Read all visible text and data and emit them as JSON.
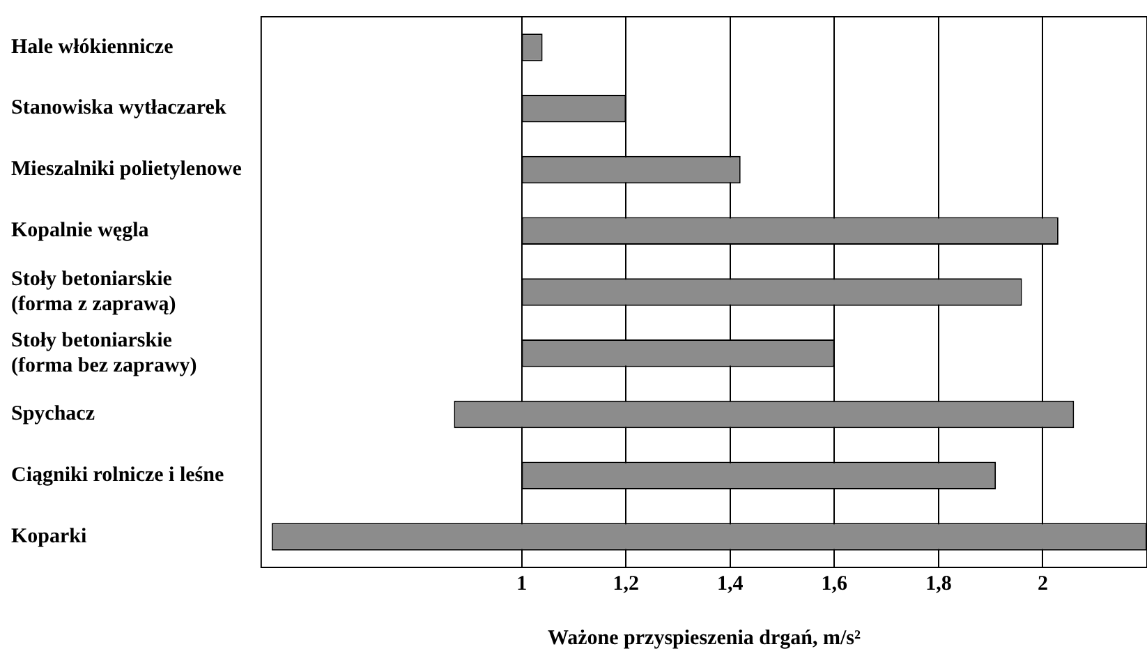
{
  "chart_data": {
    "type": "bar",
    "orientation": "horizontal",
    "xlabel": "Ważone przyspieszenia drgań, m/s²",
    "categories": [
      "Hale włókiennicze",
      "Stanowiska wytłaczarek",
      "Mieszalniki polietylenowe",
      "Kopalnie węgla",
      "Stoły betoniarskie (forma z zaprawą)",
      "Stoły betoniarskie (forma bez zaprawy)",
      "Spychacz",
      "Ciągniki rolnicze i leśne",
      "Koparki"
    ],
    "base": [
      1,
      1,
      1,
      1,
      1,
      1,
      0.87,
      1,
      0.52
    ],
    "values": [
      0.04,
      0.2,
      0.42,
      1.03,
      0.96,
      0.6,
      1.19,
      0.91,
      1.68
    ],
    "color": "#8c8c8c",
    "xlim": [
      0.5,
      2.2
    ],
    "xticks": [
      {
        "value": 1,
        "label": "1"
      },
      {
        "value": 1.2,
        "label": "1,2"
      },
      {
        "value": 1.4,
        "label": "1,4"
      },
      {
        "value": 1.6,
        "label": "1,6"
      },
      {
        "value": 1.8,
        "label": "1,8"
      },
      {
        "value": 2,
        "label": "2"
      }
    ],
    "grid": "x",
    "legend": false
  }
}
